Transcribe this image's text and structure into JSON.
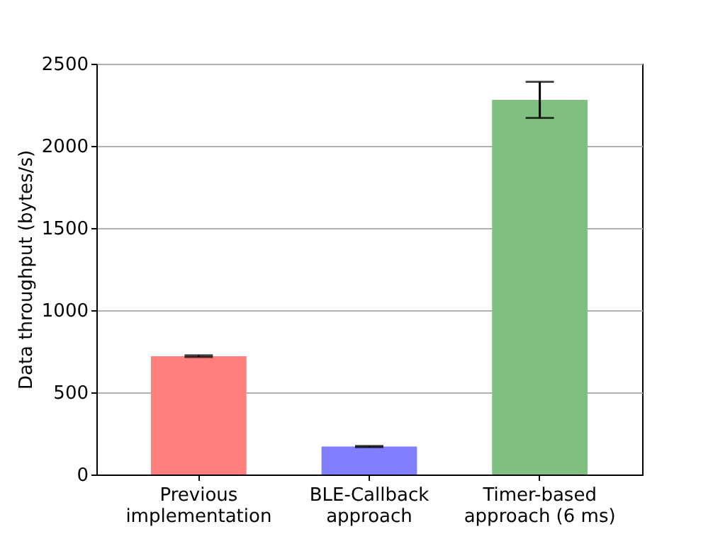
{
  "chart_data": {
    "type": "bar",
    "ylabel": "Data throughput (bytes/s)",
    "categories": [
      "Previous implementation",
      "BLE-Callback approach",
      "Timer-based approach (6 ms)"
    ],
    "values": [
      720,
      170,
      2280
    ],
    "errors": [
      5,
      3,
      110
    ],
    "colors": [
      "#ff7f7f",
      "#7f7fff",
      "#7fbf7f"
    ],
    "ylim": [
      0,
      2500
    ],
    "yticks": [
      0,
      500,
      1000,
      1500,
      2000,
      2500
    ],
    "grid": "y"
  }
}
